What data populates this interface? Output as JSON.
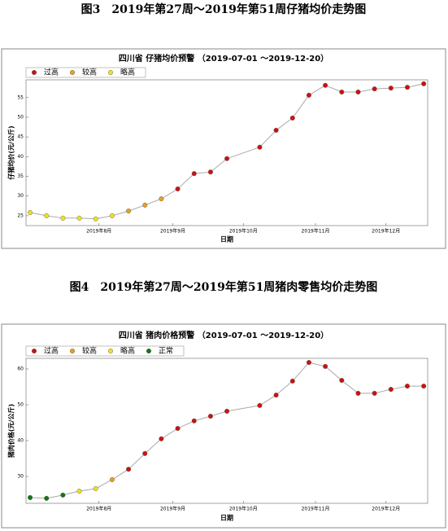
{
  "chart_data": [
    {
      "type": "line",
      "caption": "图3　2019年第27周～2019年第51周仔猪均价走势图",
      "title": "四川省 仔猪均价预警 （2019-07-01 ～2019-12-20）",
      "x_label": "日期",
      "y_label": "仔猪均价(元/公斤)",
      "legend": [
        {
          "name": "过高",
          "color": "#cc1111"
        },
        {
          "name": "较高",
          "color": "#e8a020"
        },
        {
          "name": "略高",
          "color": "#f0e020"
        }
      ],
      "x": [
        27,
        28,
        29,
        30,
        31,
        32,
        33,
        34,
        35,
        36,
        37,
        38,
        39,
        41,
        42,
        43,
        44,
        45,
        46,
        47,
        48,
        49,
        50,
        51
      ],
      "values": [
        25.8,
        25.0,
        24.4,
        24.4,
        24.2,
        25.0,
        26.2,
        27.7,
        29.3,
        31.8,
        35.7,
        36.1,
        39.5,
        42.4,
        46.7,
        49.8,
        55.6,
        58.1,
        56.4,
        56.4,
        57.2,
        57.4,
        57.6,
        58.5
      ],
      "point_colors": [
        "#f0e020",
        "#f0e020",
        "#f0e020",
        "#f0e020",
        "#f0e020",
        "#f0e020",
        "#e8a020",
        "#e8a020",
        "#e8a020",
        "#cc1111",
        "#cc1111",
        "#cc1111",
        "#cc1111",
        "#cc1111",
        "#cc1111",
        "#cc1111",
        "#cc1111",
        "#cc1111",
        "#cc1111",
        "#cc1111",
        "#cc1111",
        "#cc1111",
        "#cc1111",
        "#cc1111"
      ],
      "line_color": "#aaaaaa",
      "xlim": [
        26.75,
        51.24
      ],
      "xticks": [
        {
          "value": 31.2,
          "label": "2019年8月"
        },
        {
          "value": 35.7,
          "label": "2019年9月"
        },
        {
          "value": 40.0,
          "label": "2019年10月"
        },
        {
          "value": 44.4,
          "label": "2019年11月"
        },
        {
          "value": 48.7,
          "label": "2019年12月"
        }
      ],
      "ylim": [
        22.5,
        59.5
      ],
      "yticks": [
        25,
        30,
        35,
        40,
        45,
        50,
        55
      ]
    },
    {
      "type": "line",
      "caption": "图4　2019年第27周～2019年第51周猪肉零售均价走势图",
      "title": "四川省 猪肉价格预警 （2019-07-01 ～2019-12-20）",
      "x_label": "日期",
      "y_label": "猪肉价格(元/公斤)",
      "legend": [
        {
          "name": "过高",
          "color": "#cc1111"
        },
        {
          "name": "较高",
          "color": "#e8a020"
        },
        {
          "name": "略高",
          "color": "#f0e020"
        },
        {
          "name": "正常",
          "color": "#117711"
        }
      ],
      "x": [
        27,
        28,
        29,
        30,
        31,
        32,
        33,
        34,
        35,
        36,
        37,
        38,
        39,
        41,
        42,
        43,
        44,
        45,
        46,
        47,
        48,
        49,
        50,
        51
      ],
      "values": [
        24.1,
        23.9,
        24.8,
        25.9,
        26.6,
        29.1,
        32.0,
        36.4,
        40.5,
        43.4,
        45.5,
        46.8,
        48.2,
        49.8,
        52.7,
        56.6,
        61.8,
        60.7,
        56.8,
        53.2,
        53.2,
        54.3,
        55.2,
        55.2
      ],
      "point_colors": [
        "#117711",
        "#117711",
        "#117711",
        "#f0e020",
        "#f0e020",
        "#e8a020",
        "#cc1111",
        "#cc1111",
        "#cc1111",
        "#cc1111",
        "#cc1111",
        "#cc1111",
        "#cc1111",
        "#cc1111",
        "#cc1111",
        "#cc1111",
        "#cc1111",
        "#cc1111",
        "#cc1111",
        "#cc1111",
        "#cc1111",
        "#cc1111",
        "#cc1111",
        "#cc1111"
      ],
      "line_color": "#aaaaaa",
      "xlim": [
        26.75,
        51.24
      ],
      "xticks": [
        {
          "value": 31.2,
          "label": "2019年8月"
        },
        {
          "value": 35.7,
          "label": "2019年9月"
        },
        {
          "value": 40.0,
          "label": "2019年10月"
        },
        {
          "value": 44.4,
          "label": "2019年11月"
        },
        {
          "value": 48.7,
          "label": "2019年12月"
        }
      ],
      "ylim": [
        22.5,
        62.95
      ],
      "yticks": [
        30,
        40,
        50,
        60
      ]
    }
  ]
}
